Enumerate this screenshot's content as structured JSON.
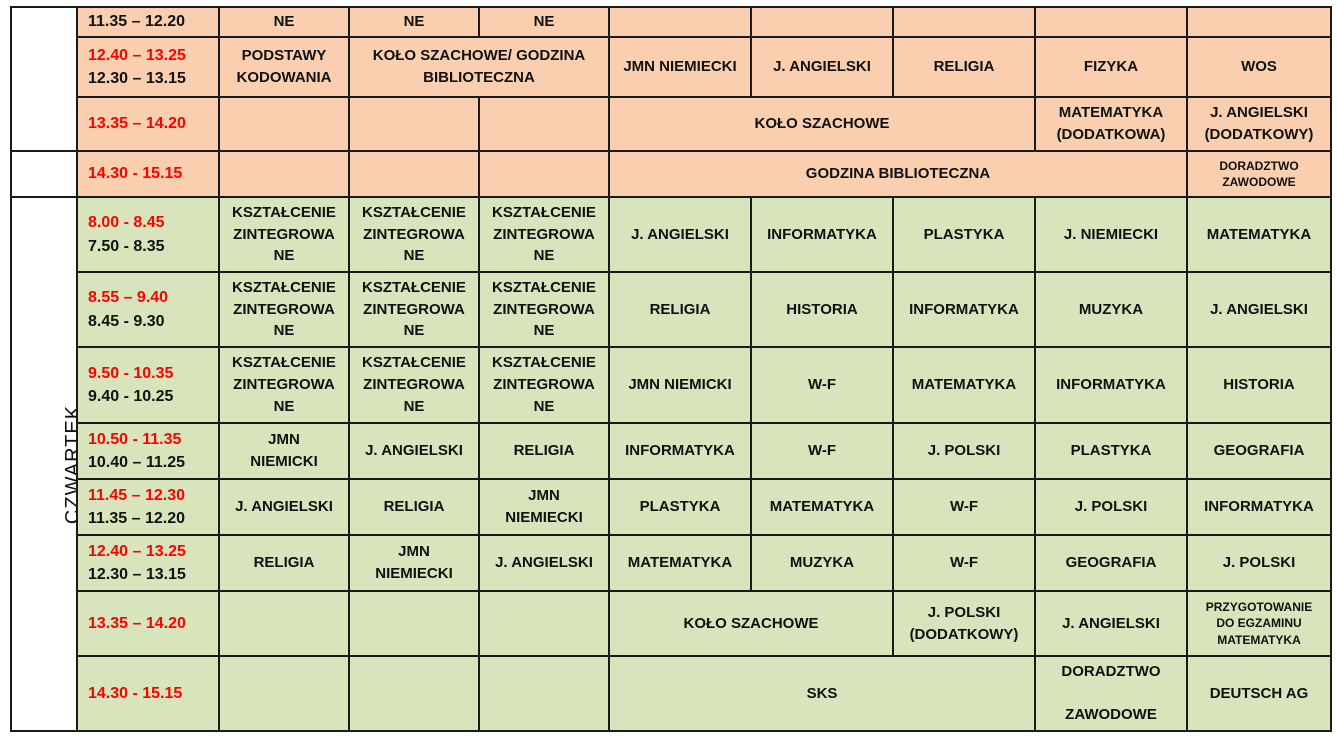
{
  "day_label": "CZWARTEK",
  "colors": {
    "peach": "#f9cfb0",
    "green": "#d8e4bc",
    "red_time": "#ff0000"
  },
  "rows": [
    {
      "time_red": "",
      "time_black": "11.35 – 12.20",
      "cells": [
        {
          "t": "NE"
        },
        {
          "t": "NE"
        },
        {
          "t": "NE"
        },
        {
          "t": ""
        },
        {
          "t": ""
        },
        {
          "t": ""
        },
        {
          "t": ""
        },
        {
          "t": ""
        }
      ]
    },
    {
      "time_red": "12.40 – 13.25",
      "time_black": "12.30 – 13.15",
      "cells": [
        {
          "t": "PODSTAWY\nKODOWANIA"
        },
        {
          "t": "KOŁO SZACHOWE/ GODZINA\nBIBLIOTECZNA",
          "span": 2
        },
        {
          "t": "JMN NIEMIECKI"
        },
        {
          "t": "J. ANGIELSKI"
        },
        {
          "t": "RELIGIA"
        },
        {
          "t": "FIZYKA"
        },
        {
          "t": "WOS"
        }
      ]
    },
    {
      "time_red": "13.35 – 14.20",
      "time_black": "",
      "cells": [
        {
          "t": ""
        },
        {
          "t": ""
        },
        {
          "t": ""
        },
        {
          "t": "KOŁO SZACHOWE",
          "span": 3
        },
        {
          "t": "MATEMATYKA\n(DODATKOWA)"
        },
        {
          "t": "J. ANGIELSKI\n(DODATKOWY)"
        }
      ]
    },
    {
      "time_red": "14.30 - 15.15",
      "time_black": "",
      "cells": [
        {
          "t": ""
        },
        {
          "t": ""
        },
        {
          "t": ""
        },
        {
          "t": "GODZINA BIBLIOTECZNA",
          "span": 4
        },
        {
          "t": "DORADZTWO\nZAWODOWE",
          "small": true
        }
      ]
    },
    {
      "time_red": "8.00 - 8.45",
      "time_black": "7.50 - 8.35",
      "cells": [
        {
          "t": "KSZTAŁCENIE\nZINTEGROWA\nNE"
        },
        {
          "t": "KSZTAŁCENIE\nZINTEGROWA\nNE"
        },
        {
          "t": "KSZTAŁCENIE\nZINTEGROWA\nNE"
        },
        {
          "t": "J. ANGIELSKI"
        },
        {
          "t": "INFORMATYKA"
        },
        {
          "t": "PLASTYKA"
        },
        {
          "t": "J. NIEMIECKI"
        },
        {
          "t": "MATEMATYKA"
        }
      ]
    },
    {
      "time_red": "8.55 – 9.40",
      "time_black": "8.45 - 9.30",
      "cells": [
        {
          "t": "KSZTAŁCENIE\nZINTEGROWA\nNE"
        },
        {
          "t": "KSZTAŁCENIE\nZINTEGROWA\nNE"
        },
        {
          "t": "KSZTAŁCENIE\nZINTEGROWA\nNE"
        },
        {
          "t": "RELIGIA"
        },
        {
          "t": "HISTORIA"
        },
        {
          "t": "INFORMATYKA"
        },
        {
          "t": "MUZYKA"
        },
        {
          "t": "J. ANGIELSKI"
        }
      ]
    },
    {
      "time_red": "9.50 - 10.35",
      "time_black": "9.40 - 10.25",
      "cells": [
        {
          "t": "KSZTAŁCENIE\nZINTEGROWA\nNE"
        },
        {
          "t": "KSZTAŁCENIE\nZINTEGROWA\nNE"
        },
        {
          "t": "KSZTAŁCENIE\nZINTEGROWA\nNE"
        },
        {
          "t": "JMN NIEMICKI\n "
        },
        {
          "t": "W-F"
        },
        {
          "t": "MATEMATYKA"
        },
        {
          "t": "INFORMATYKA"
        },
        {
          "t": "HISTORIA"
        }
      ]
    },
    {
      "time_red": "10.50 - 11.35",
      "time_black": "10.40 – 11.25",
      "cells": [
        {
          "t": "JMN\nNIEMICKI"
        },
        {
          "t": "J. ANGIELSKI"
        },
        {
          "t": "RELIGIA"
        },
        {
          "t": "INFORMATYKA"
        },
        {
          "t": "W-F"
        },
        {
          "t": "J. POLSKI"
        },
        {
          "t": "PLASTYKA"
        },
        {
          "t": "GEOGRAFIA"
        }
      ]
    },
    {
      "time_red": "11.45 – 12.30",
      "time_black": "11.35 – 12.20",
      "cells": [
        {
          "t": "J. ANGIELSKI"
        },
        {
          "t": "RELIGIA"
        },
        {
          "t": "JMN\nNIEMIECKI"
        },
        {
          "t": "PLASTYKA"
        },
        {
          "t": "MATEMATYKA"
        },
        {
          "t": "W-F"
        },
        {
          "t": "J. POLSKI"
        },
        {
          "t": "INFORMATYKA"
        }
      ]
    },
    {
      "time_red": "12.40 – 13.25",
      "time_black": "12.30 – 13.15",
      "cells": [
        {
          "t": "RELIGIA"
        },
        {
          "t": "JMN\nNIEMIECKI"
        },
        {
          "t": "J. ANGIELSKI"
        },
        {
          "t": "MATEMATYKA"
        },
        {
          "t": "MUZYKA"
        },
        {
          "t": "W-F"
        },
        {
          "t": "GEOGRAFIA"
        },
        {
          "t": "J. POLSKI"
        }
      ]
    },
    {
      "time_red": "13.35 – 14.20",
      "time_black": "",
      "cells": [
        {
          "t": ""
        },
        {
          "t": ""
        },
        {
          "t": ""
        },
        {
          "t": "KOŁO SZACHOWE",
          "span": 2
        },
        {
          "t": "J. POLSKI\n(DODATKOWY)"
        },
        {
          "t": "J. ANGIELSKI"
        },
        {
          "t": "PRZYGOTOWANIE\nDO EGZAMINU\nMATEMATYKA",
          "small": true
        }
      ]
    },
    {
      "time_red": "14.30 - 15.15",
      "time_black": "",
      "cells": [
        {
          "t": ""
        },
        {
          "t": ""
        },
        {
          "t": ""
        },
        {
          "t": "SKS",
          "span": 3
        },
        {
          "t": "DORADZTWO\n\nZAWODOWE"
        },
        {
          "t": "DEUTSCH AG"
        }
      ]
    }
  ]
}
